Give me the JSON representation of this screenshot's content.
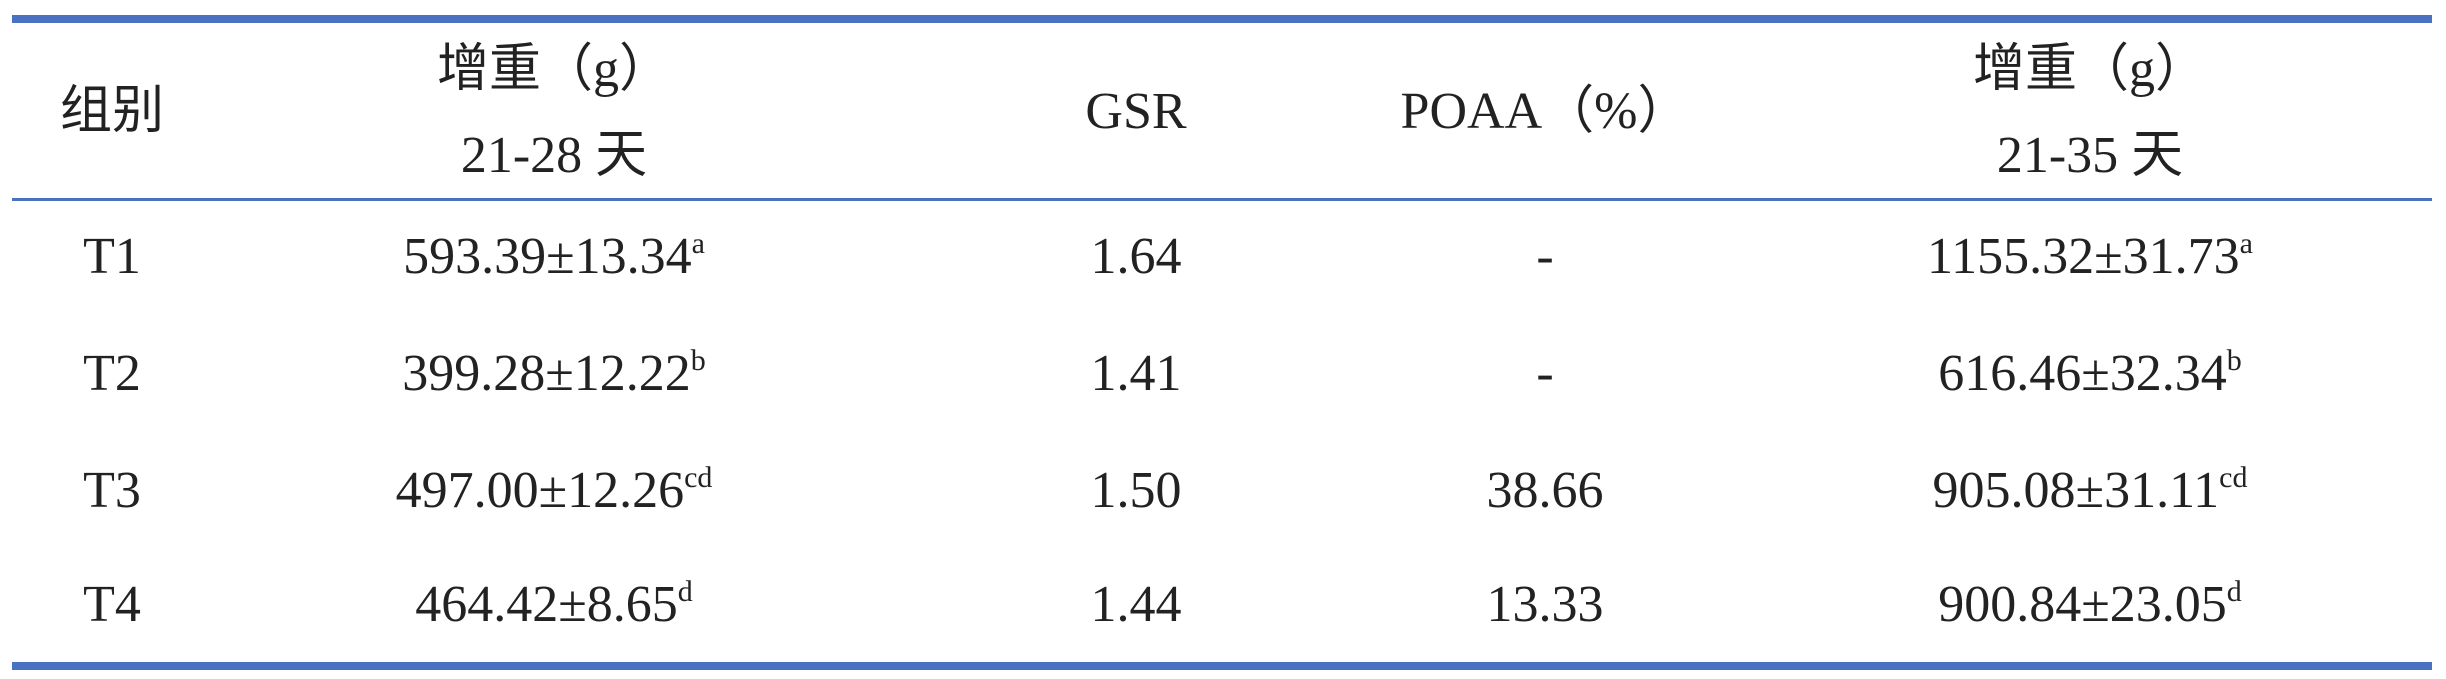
{
  "table": {
    "header": [
      "组别",
      [
        "增重（g）",
        "21-28 天"
      ],
      "GSR",
      "POAA（%）",
      [
        "增重（g）",
        "21-35 天"
      ]
    ],
    "rows": [
      [
        "T1",
        {
          "text": "593.39±13.34",
          "sup": "a"
        },
        "1.64",
        "-",
        {
          "text": "1155.32±31.73",
          "sup": "a"
        }
      ],
      [
        "T2",
        {
          "text": "399.28±12.22",
          "sup": "b"
        },
        "1.41",
        "-",
        {
          "text": "616.46±32.34",
          "sup": "b"
        }
      ],
      [
        "T3",
        {
          "text": "497.00±12.26",
          "sup": "cd"
        },
        "1.50",
        "38.66",
        {
          "text": "905.08±31.11",
          "sup": "cd"
        }
      ],
      [
        "T4",
        {
          "text": "464.42±8.65",
          "sup": "d"
        },
        "1.44",
        "13.33",
        {
          "text": "900.84±23.05",
          "sup": "d"
        }
      ]
    ]
  }
}
